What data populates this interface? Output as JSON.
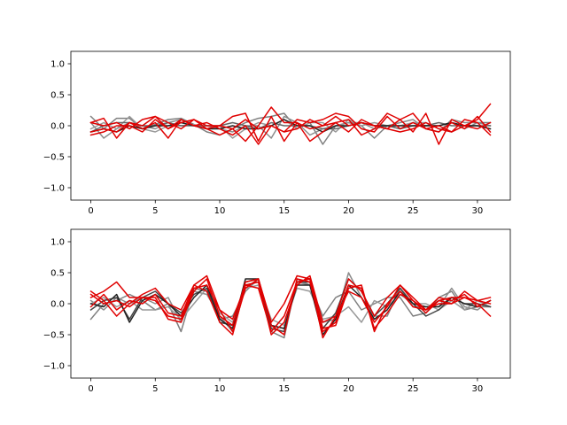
{
  "chart_data": [
    {
      "type": "line",
      "title": "",
      "xlabel": "",
      "ylabel": "",
      "xlim": [
        -1.55,
        32.55
      ],
      "ylim": [
        -1.2,
        1.2
      ],
      "xticks": [
        0,
        5,
        10,
        15,
        20,
        25,
        30
      ],
      "yticks": [
        -1.0,
        -0.5,
        0.0,
        0.5,
        1.0
      ],
      "xtick_labels": [
        "0",
        "5",
        "10",
        "15",
        "20",
        "25",
        "30"
      ],
      "ytick_labels": [
        "−1.0",
        "−0.5",
        "0.0",
        "0.5",
        "1.0"
      ],
      "grid": false,
      "x": [
        0,
        1,
        2,
        3,
        4,
        5,
        6,
        7,
        8,
        9,
        10,
        11,
        12,
        13,
        14,
        15,
        16,
        17,
        18,
        19,
        20,
        21,
        22,
        23,
        24,
        25,
        26,
        27,
        28,
        29,
        30,
        31
      ],
      "series": [
        {
          "color": "#7f7f7f",
          "values": [
            0.15,
            -0.05,
            0.12,
            0.12,
            -0.05,
            0.02,
            0.1,
            0.12,
            0.02,
            -0.1,
            -0.15,
            -0.05,
            0.05,
            0.12,
            0.15,
            0.2,
            -0.05,
            0.05,
            -0.3,
            0.0,
            0.05,
            0.0,
            -0.2,
            0.0,
            -0.05,
            0.05,
            0.0,
            0.0,
            0.05,
            -0.05,
            0.05,
            0.05
          ]
        },
        {
          "color": "#8c8c8c",
          "values": [
            0.05,
            -0.2,
            -0.05,
            0.05,
            0.0,
            -0.05,
            0.05,
            0.1,
            0.0,
            0.0,
            -0.05,
            -0.1,
            0.0,
            0.0,
            -0.2,
            0.15,
            0.05,
            -0.15,
            -0.05,
            0.0,
            0.05,
            0.05,
            -0.05,
            0.0,
            0.05,
            0.1,
            -0.05,
            -0.1,
            0.1,
            0.05,
            0.05,
            0.0
          ]
        },
        {
          "color": "#999999",
          "values": [
            -0.05,
            0.05,
            -0.05,
            0.15,
            -0.05,
            -0.1,
            0.0,
            0.0,
            0.02,
            -0.05,
            0.0,
            -0.2,
            -0.05,
            0.05,
            0.0,
            0.1,
            -0.05,
            0.05,
            0.05,
            -0.1,
            0.1,
            0.0,
            0.05,
            0.0,
            0.0,
            0.05,
            0.05,
            -0.05,
            -0.1,
            0.0,
            0.0,
            -0.05
          ]
        },
        {
          "color": "#666666",
          "values": [
            -0.1,
            0.0,
            0.05,
            0.05,
            0.0,
            0.0,
            0.05,
            0.0,
            0.0,
            0.0,
            0.0,
            0.05,
            0.0,
            -0.05,
            0.05,
            0.0,
            0.0,
            0.0,
            -0.05,
            -0.05,
            0.0,
            0.05,
            0.0,
            0.0,
            -0.05,
            0.0,
            0.0,
            0.05,
            0.0,
            0.0,
            0.0,
            0.0
          ]
        },
        {
          "color": "#222222",
          "values": [
            -0.1,
            -0.05,
            -0.1,
            0.0,
            -0.05,
            0.0,
            0.0,
            0.05,
            0.0,
            -0.05,
            -0.05,
            0.0,
            -0.05,
            -0.05,
            0.0,
            0.1,
            0.0,
            0.0,
            -0.1,
            0.0,
            0.0,
            0.05,
            0.0,
            0.0,
            0.0,
            0.0,
            0.0,
            0.0,
            0.05,
            0.0,
            0.0,
            -0.05
          ]
        },
        {
          "color": "#e00000",
          "values": [
            0.05,
            0.12,
            -0.2,
            0.05,
            0.0,
            0.15,
            0.05,
            -0.05,
            0.1,
            -0.05,
            0.0,
            0.15,
            0.2,
            -0.25,
            0.15,
            -0.25,
            0.05,
            -0.25,
            -0.1,
            0.05,
            0.1,
            -0.15,
            -0.05,
            0.2,
            0.1,
            -0.1,
            0.2,
            -0.3,
            0.1,
            0.0,
            0.1,
            0.35
          ]
        },
        {
          "color": "#e00000",
          "values": [
            -0.15,
            -0.1,
            0.0,
            0.0,
            -0.1,
            0.1,
            -0.05,
            0.1,
            0.0,
            -0.05,
            -0.15,
            -0.05,
            0.1,
            -0.05,
            0.0,
            -0.1,
            0.1,
            0.05,
            0.1,
            0.2,
            0.15,
            -0.05,
            -0.1,
            0.15,
            -0.05,
            0.05,
            -0.05,
            0.0,
            -0.1,
            0.1,
            0.05,
            -0.15
          ]
        },
        {
          "color": "#e00000",
          "values": [
            0.05,
            0.0,
            0.05,
            -0.05,
            0.1,
            0.15,
            -0.05,
            0.05,
            0.1,
            0.0,
            0.0,
            -0.05,
            -0.25,
            0.0,
            0.3,
            0.05,
            0.05,
            -0.05,
            0.0,
            0.05,
            -0.1,
            0.1,
            0.0,
            -0.05,
            0.1,
            0.2,
            -0.05,
            -0.1,
            0.05,
            -0.05,
            0.15,
            -0.1
          ]
        },
        {
          "color": "#e00000",
          "values": [
            -0.1,
            -0.05,
            -0.1,
            0.05,
            -0.05,
            0.05,
            -0.2,
            0.1,
            0.0,
            0.05,
            -0.05,
            -0.15,
            0.0,
            -0.3,
            0.0,
            -0.1,
            -0.05,
            0.1,
            0.0,
            0.15,
            0.0,
            0.05,
            0.0,
            -0.05,
            -0.1,
            -0.05,
            0.05,
            -0.05,
            -0.1,
            0.0,
            -0.05,
            0.05
          ]
        }
      ]
    },
    {
      "type": "line",
      "title": "",
      "xlabel": "",
      "ylabel": "",
      "xlim": [
        -1.55,
        32.55
      ],
      "ylim": [
        -1.2,
        1.2
      ],
      "xticks": [
        0,
        5,
        10,
        15,
        20,
        25,
        30
      ],
      "yticks": [
        -1.0,
        -0.5,
        0.0,
        0.5,
        1.0
      ],
      "xtick_labels": [
        "0",
        "5",
        "10",
        "15",
        "20",
        "25",
        "30"
      ],
      "ytick_labels": [
        "−1.0",
        "−0.5",
        "0.0",
        "0.5",
        "1.0"
      ],
      "grid": false,
      "x": [
        0,
        1,
        2,
        3,
        4,
        5,
        6,
        7,
        8,
        9,
        10,
        11,
        12,
        13,
        14,
        15,
        16,
        17,
        18,
        19,
        20,
        21,
        22,
        23,
        24,
        25,
        26,
        27,
        28,
        29,
        30,
        31
      ],
      "series": [
        {
          "color": "#7f7f7f",
          "values": [
            -0.25,
            0.0,
            0.05,
            0.15,
            0.05,
            -0.1,
            0.0,
            -0.45,
            0.25,
            0.2,
            -0.25,
            -0.2,
            0.2,
            0.4,
            -0.45,
            -0.55,
            0.4,
            0.3,
            -0.2,
            0.1,
            0.2,
            -0.1,
            0.0,
            0.1,
            0.1,
            -0.2,
            -0.15,
            0.1,
            0.2,
            -0.1,
            -0.05,
            -0.05
          ]
        },
        {
          "color": "#8c8c8c",
          "values": [
            0.05,
            -0.1,
            0.1,
            0.0,
            0.1,
            0.0,
            0.1,
            -0.3,
            0.2,
            0.15,
            -0.2,
            -0.45,
            0.3,
            0.35,
            -0.35,
            -0.4,
            0.35,
            0.3,
            -0.3,
            -0.25,
            0.5,
            0.1,
            -0.2,
            -0.2,
            0.25,
            -0.05,
            -0.05,
            -0.05,
            0.25,
            -0.05,
            -0.1,
            0.05
          ]
        },
        {
          "color": "#999999",
          "values": [
            0.0,
            0.1,
            -0.05,
            0.05,
            -0.1,
            -0.1,
            -0.05,
            -0.25,
            0.0,
            0.25,
            -0.15,
            -0.3,
            0.25,
            0.3,
            -0.25,
            -0.35,
            0.25,
            0.2,
            -0.25,
            -0.2,
            -0.05,
            -0.3,
            0.05,
            -0.05,
            0.15,
            0.0,
            0.0,
            -0.1,
            0.05,
            -0.1,
            0.05,
            -0.05
          ]
        },
        {
          "color": "#444444",
          "values": [
            -0.1,
            0.05,
            0.1,
            -0.25,
            0.1,
            0.2,
            0.0,
            -0.15,
            0.15,
            0.25,
            -0.3,
            -0.35,
            0.35,
            0.4,
            -0.4,
            -0.45,
            0.35,
            0.35,
            -0.4,
            -0.15,
            0.4,
            0.2,
            -0.2,
            0.0,
            0.25,
            0.0,
            -0.2,
            -0.1,
            0.1,
            0.0,
            0.0,
            -0.05
          ]
        },
        {
          "color": "#222222",
          "values": [
            0.0,
            -0.05,
            0.15,
            -0.3,
            0.05,
            0.15,
            0.0,
            -0.2,
            0.1,
            0.3,
            -0.25,
            -0.4,
            0.4,
            0.4,
            -0.35,
            -0.4,
            0.3,
            0.3,
            -0.5,
            -0.25,
            0.3,
            0.1,
            -0.25,
            -0.1,
            0.2,
            0.0,
            -0.05,
            -0.05,
            0.1,
            0.0,
            -0.05,
            0.05
          ]
        },
        {
          "color": "#e00000",
          "values": [
            0.2,
            0.05,
            -0.2,
            0.0,
            0.15,
            0.25,
            0.0,
            -0.1,
            0.3,
            0.45,
            -0.1,
            -0.45,
            0.25,
            0.4,
            -0.3,
            0.0,
            0.45,
            0.4,
            -0.4,
            -0.35,
            0.25,
            0.3,
            -0.45,
            0.0,
            0.2,
            -0.05,
            -0.1,
            0.0,
            0.0,
            0.1,
            0.0,
            -0.2
          ]
        },
        {
          "color": "#e00000",
          "values": [
            0.1,
            0.2,
            0.35,
            0.1,
            0.1,
            0.05,
            -0.2,
            -0.25,
            0.25,
            0.3,
            -0.1,
            -0.25,
            0.3,
            0.25,
            -0.45,
            -0.2,
            0.35,
            0.4,
            -0.55,
            -0.2,
            0.2,
            0.1,
            -0.3,
            -0.05,
            0.3,
            0.1,
            -0.1,
            0.1,
            0.05,
            0.15,
            -0.05,
            0.05
          ]
        },
        {
          "color": "#e00000",
          "values": [
            -0.05,
            0.15,
            -0.1,
            0.05,
            0.0,
            0.15,
            -0.15,
            -0.2,
            0.3,
            0.2,
            -0.3,
            -0.5,
            0.3,
            0.35,
            -0.5,
            -0.3,
            0.3,
            0.45,
            -0.3,
            -0.2,
            0.4,
            0.2,
            -0.2,
            0.1,
            0.3,
            0.05,
            -0.15,
            0.05,
            0.1,
            0.1,
            0.05,
            0.1
          ]
        },
        {
          "color": "#e00000",
          "values": [
            0.15,
            0.0,
            0.05,
            -0.05,
            0.1,
            0.1,
            -0.25,
            -0.3,
            0.2,
            0.4,
            -0.2,
            -0.35,
            0.35,
            0.4,
            -0.35,
            -0.5,
            0.4,
            0.35,
            -0.45,
            -0.3,
            0.3,
            0.25,
            -0.4,
            -0.15,
            0.15,
            0.05,
            -0.1,
            0.05,
            0.0,
            0.2,
            0.05,
            0.0
          ]
        }
      ]
    }
  ]
}
